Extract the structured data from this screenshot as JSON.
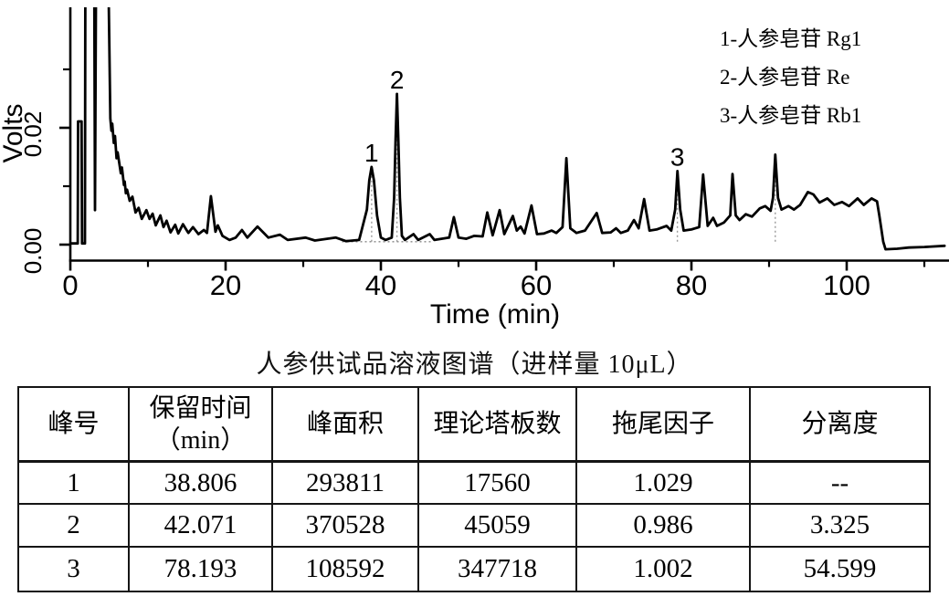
{
  "caption": "人参供试品溶液图谱（进样量 10μL）",
  "chart_data": {
    "type": "line",
    "title": "",
    "xlabel": "Time (min)",
    "ylabel": "Volts",
    "xlim": [
      0,
      113
    ],
    "ylim": [
      -0.0027,
      0.0403
    ],
    "grid": false,
    "x_axis": {
      "major_ticks": [
        0,
        20,
        40,
        60,
        80,
        100
      ],
      "major_tick_labels": [
        "0",
        "20",
        "40",
        "60",
        "80",
        "100"
      ],
      "minor_ticks": [
        10,
        30,
        50,
        70,
        90,
        110
      ]
    },
    "y_axis": {
      "major_ticks": [
        {
          "value": 0.0,
          "label": "0.00"
        },
        {
          "value": 0.02,
          "label": "0.02"
        }
      ],
      "minor_ticks": [
        0.01,
        0.03
      ]
    },
    "legend_position": "upper right",
    "legend": [
      "1-人参皂苷 Rg1",
      "2-人参皂苷 Re",
      "3-人参皂苷 Rb1"
    ],
    "peak_annotations": [
      {
        "label": "1",
        "time_min": 38.806,
        "apex_volts": 0.0133
      },
      {
        "label": "2",
        "time_min": 42.071,
        "apex_volts": 0.0258
      },
      {
        "label": "3",
        "time_min": 78.193,
        "apex_volts": 0.0126
      }
    ],
    "retention_markers": [
      {
        "time_min": 38.81,
        "apex_volts": 0.0128
      },
      {
        "time_min": 42.07,
        "apex_volts": 0.0252
      },
      {
        "time_min": 78.19,
        "apex_volts": 0.0122
      },
      {
        "time_min": 90.8,
        "apex_volts": 0.0148
      }
    ],
    "integration_baseline": {
      "t_start": 35.0,
      "t_end": 46.6,
      "volts": 0.0005
    },
    "clip_level_volts": 0.041,
    "trace_time_volts": [
      [
        0,
        0.0002
      ],
      [
        0.95,
        0.0002
      ],
      [
        1.0,
        0.0211
      ],
      [
        1.45,
        0.0211
      ],
      [
        1.5,
        0.0002
      ],
      [
        1.88,
        0.0002
      ],
      [
        1.93,
        0.041
      ],
      [
        3.1,
        0.041
      ],
      [
        3.18,
        0.0059
      ],
      [
        3.3,
        0.041
      ],
      [
        4.95,
        0.041
      ],
      [
        5.15,
        0.0216
      ],
      [
        5.3,
        0.0195
      ],
      [
        5.4,
        0.0207
      ],
      [
        5.6,
        0.0174
      ],
      [
        5.75,
        0.0186
      ],
      [
        5.95,
        0.0148
      ],
      [
        6.1,
        0.0158
      ],
      [
        6.5,
        0.0122
      ],
      [
        6.65,
        0.0132
      ],
      [
        6.9,
        0.0102
      ],
      [
        7.0,
        0.0108
      ],
      [
        7.15,
        0.0088
      ],
      [
        7.3,
        0.0094
      ],
      [
        7.65,
        0.0075
      ],
      [
        8.0,
        0.0082
      ],
      [
        8.4,
        0.0055
      ],
      [
        8.8,
        0.0063
      ],
      [
        9.2,
        0.0044
      ],
      [
        9.8,
        0.0059
      ],
      [
        10.2,
        0.0044
      ],
      [
        10.6,
        0.0053
      ],
      [
        11.0,
        0.0033
      ],
      [
        11.6,
        0.005
      ],
      [
        12.0,
        0.003
      ],
      [
        12.4,
        0.0041
      ],
      [
        12.9,
        0.0021
      ],
      [
        13.5,
        0.0034
      ],
      [
        13.9,
        0.0019
      ],
      [
        14.5,
        0.0035
      ],
      [
        15.2,
        0.002
      ],
      [
        15.8,
        0.003
      ],
      [
        16.5,
        0.0018
      ],
      [
        17.2,
        0.0025
      ],
      [
        17.6,
        0.002
      ],
      [
        18.1,
        0.0083
      ],
      [
        18.7,
        0.0022
      ],
      [
        19.0,
        0.0033
      ],
      [
        19.6,
        0.0015
      ],
      [
        20.5,
        0.0008
      ],
      [
        21.3,
        0.0012
      ],
      [
        22.1,
        0.0025
      ],
      [
        22.8,
        0.0012
      ],
      [
        24.1,
        0.0031
      ],
      [
        25.5,
        0.0012
      ],
      [
        27.0,
        0.0017
      ],
      [
        28.0,
        0.0008
      ],
      [
        30.3,
        0.0012
      ],
      [
        31.5,
        0.0007
      ],
      [
        34.2,
        0.0012
      ],
      [
        35.5,
        0.0006
      ],
      [
        37.2,
        0.0008
      ],
      [
        38.2,
        0.006
      ],
      [
        38.5,
        0.011
      ],
      [
        38.8,
        0.0133
      ],
      [
        39.1,
        0.011
      ],
      [
        39.5,
        0.005
      ],
      [
        40.0,
        0.0012
      ],
      [
        40.6,
        0.0008
      ],
      [
        41.4,
        0.0012
      ],
      [
        41.7,
        0.008
      ],
      [
        41.9,
        0.018
      ],
      [
        42.07,
        0.0258
      ],
      [
        42.25,
        0.018
      ],
      [
        42.45,
        0.008
      ],
      [
        42.7,
        0.0015
      ],
      [
        43.1,
        0.0008
      ],
      [
        44.2,
        0.0018
      ],
      [
        44.8,
        0.0008
      ],
      [
        46.3,
        0.0018
      ],
      [
        46.9,
        0.0008
      ],
      [
        48.8,
        0.0012
      ],
      [
        49.4,
        0.0047
      ],
      [
        50.0,
        0.0012
      ],
      [
        51.0,
        0.001
      ],
      [
        52.0,
        0.0015
      ],
      [
        53.1,
        0.0014
      ],
      [
        53.7,
        0.0055
      ],
      [
        54.4,
        0.0016
      ],
      [
        55.3,
        0.0059
      ],
      [
        55.9,
        0.0018
      ],
      [
        57.0,
        0.0049
      ],
      [
        57.5,
        0.0024
      ],
      [
        58.0,
        0.0031
      ],
      [
        58.5,
        0.0019
      ],
      [
        59.4,
        0.0067
      ],
      [
        60.1,
        0.0018
      ],
      [
        61.0,
        0.0019
      ],
      [
        62.0,
        0.0024
      ],
      [
        62.6,
        0.002
      ],
      [
        63.4,
        0.003
      ],
      [
        63.9,
        0.0148
      ],
      [
        64.4,
        0.0028
      ],
      [
        65.2,
        0.002
      ],
      [
        66.3,
        0.0024
      ],
      [
        67.8,
        0.0054
      ],
      [
        68.5,
        0.002
      ],
      [
        69.6,
        0.0021
      ],
      [
        70.3,
        0.0028
      ],
      [
        70.9,
        0.002
      ],
      [
        71.8,
        0.0024
      ],
      [
        72.6,
        0.0042
      ],
      [
        73.2,
        0.0028
      ],
      [
        73.9,
        0.0078
      ],
      [
        74.6,
        0.0024
      ],
      [
        75.5,
        0.0026
      ],
      [
        76.8,
        0.0032
      ],
      [
        77.4,
        0.0024
      ],
      [
        77.9,
        0.006
      ],
      [
        78.2,
        0.0126
      ],
      [
        78.55,
        0.006
      ],
      [
        79.0,
        0.0024
      ],
      [
        80.0,
        0.0026
      ],
      [
        81.0,
        0.003
      ],
      [
        81.5,
        0.012
      ],
      [
        82.1,
        0.0032
      ],
      [
        82.8,
        0.0046
      ],
      [
        83.3,
        0.0032
      ],
      [
        84.2,
        0.0038
      ],
      [
        85.0,
        0.005
      ],
      [
        85.3,
        0.0121
      ],
      [
        85.7,
        0.005
      ],
      [
        86.2,
        0.0042
      ],
      [
        87.0,
        0.0052
      ],
      [
        87.8,
        0.0048
      ],
      [
        88.8,
        0.0062
      ],
      [
        89.5,
        0.0066
      ],
      [
        90.2,
        0.0058
      ],
      [
        90.5,
        0.008
      ],
      [
        90.8,
        0.0154
      ],
      [
        91.15,
        0.008
      ],
      [
        91.6,
        0.006
      ],
      [
        92.5,
        0.0066
      ],
      [
        93.2,
        0.006
      ],
      [
        94.0,
        0.0068
      ],
      [
        95.0,
        0.009
      ],
      [
        95.7,
        0.0086
      ],
      [
        96.5,
        0.0072
      ],
      [
        97.5,
        0.0079
      ],
      [
        98.4,
        0.0068
      ],
      [
        99.4,
        0.0073
      ],
      [
        100.3,
        0.0066
      ],
      [
        101.4,
        0.0079
      ],
      [
        102.2,
        0.0068
      ],
      [
        103.2,
        0.0079
      ],
      [
        103.9,
        0.0074
      ],
      [
        104.2,
        0.005
      ],
      [
        104.7,
        0.0005
      ],
      [
        105.0,
        -0.0008
      ],
      [
        106.5,
        -0.0007
      ],
      [
        108.0,
        -0.0005
      ],
      [
        110.0,
        -0.0004
      ],
      [
        112.6,
        -0.0002
      ]
    ]
  },
  "table": {
    "headers": [
      {
        "line1": "峰号",
        "line2": ""
      },
      {
        "line1": "保留时间",
        "line2": "（min）"
      },
      {
        "line1": "峰面积",
        "line2": ""
      },
      {
        "line1": "理论塔板数",
        "line2": ""
      },
      {
        "line1": "拖尾因子",
        "line2": ""
      },
      {
        "line1": "分离度",
        "line2": ""
      }
    ],
    "rows": [
      [
        "1",
        "38.806",
        "293811",
        "17560",
        "1.029",
        "--"
      ],
      [
        "2",
        "42.071",
        "370528",
        "45059",
        "0.986",
        "3.325"
      ],
      [
        "3",
        "78.193",
        "108592",
        "347718",
        "1.002",
        "54.599"
      ]
    ]
  }
}
